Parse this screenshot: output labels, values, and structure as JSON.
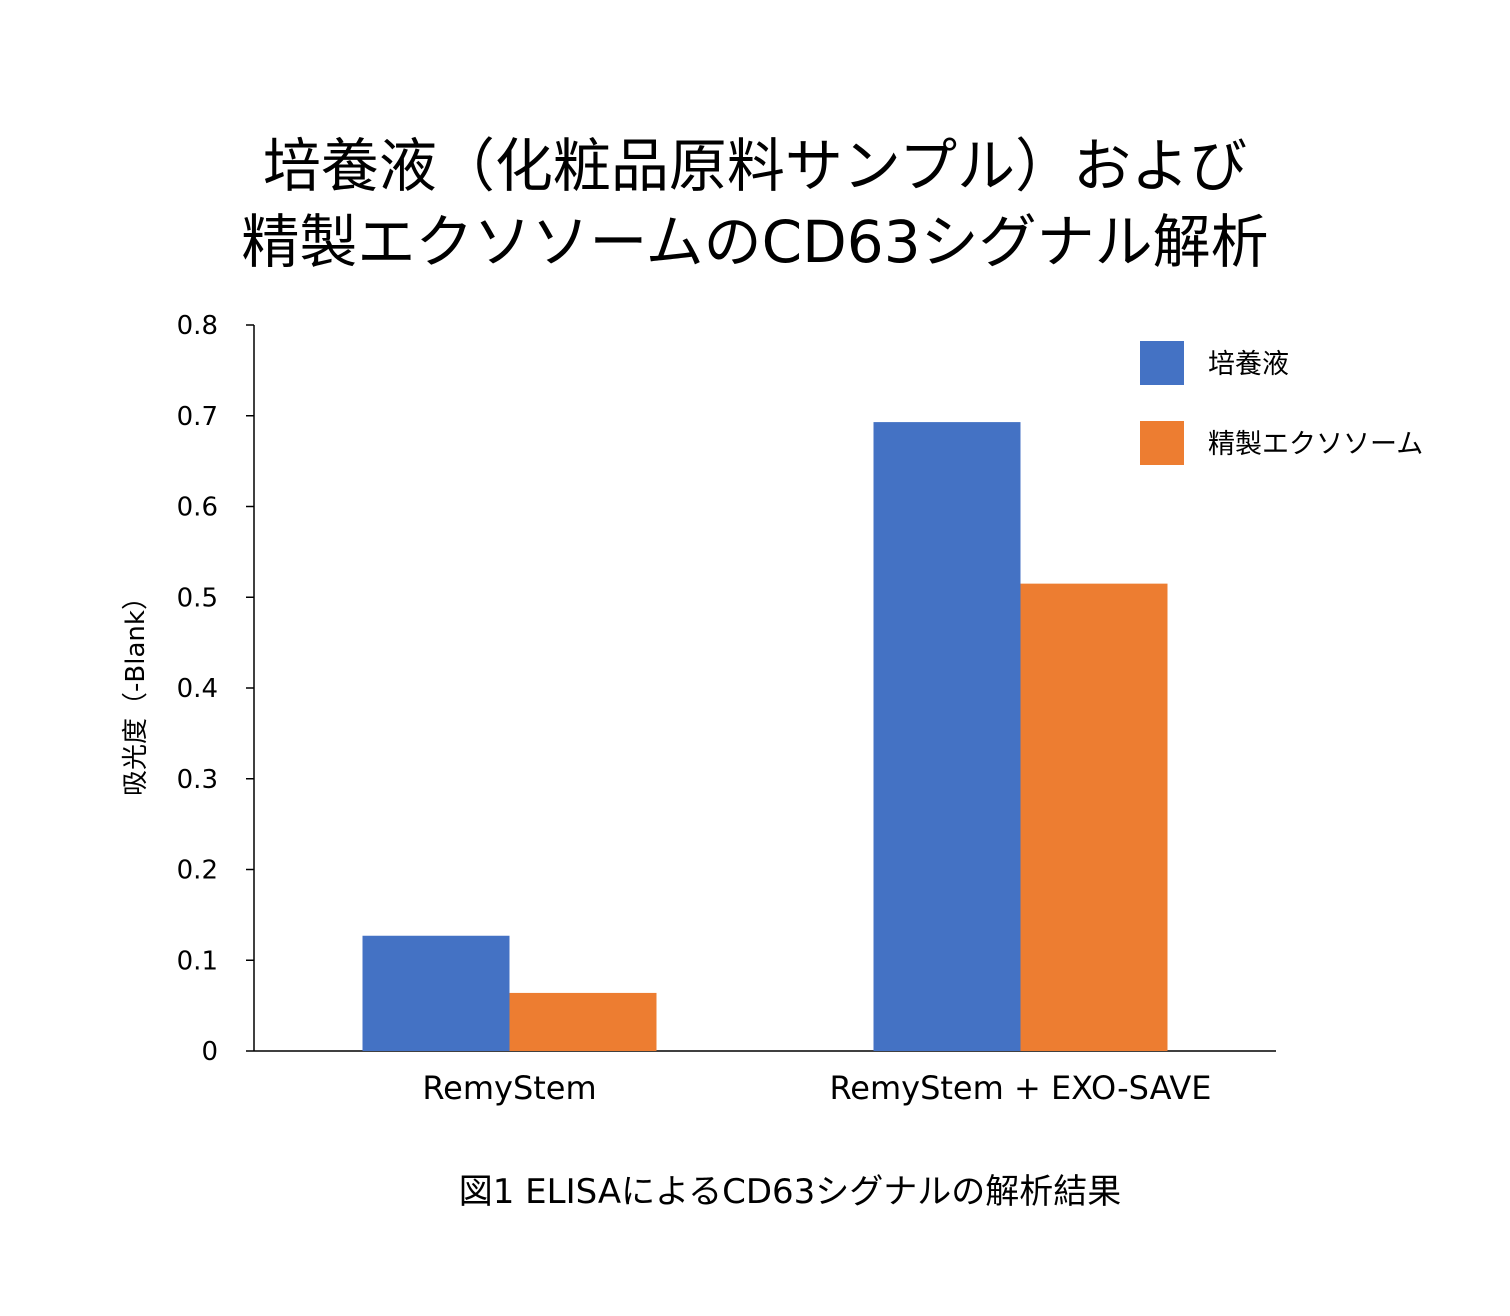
{
  "chart_data": {
    "type": "bar",
    "title_line1": "培養液（化粧品原料サンプル）および",
    "title_line2": "精製エクソソームのCD63シグナル解析",
    "xlabel": "",
    "ylabel": "吸光度（-Blank）",
    "ylim": [
      0,
      0.8
    ],
    "yticks": [
      "0",
      "0.1",
      "0.2",
      "0.3",
      "0.4",
      "0.5",
      "0.6",
      "0.7",
      "0.8"
    ],
    "categories": [
      "RemyStem",
      "RemyStem + EXO-SAVE"
    ],
    "series": [
      {
        "name": "培養液",
        "color": "#4472C4",
        "values": [
          0.127,
          0.693
        ]
      },
      {
        "name": "精製エクソソーム",
        "color": "#ED7D31",
        "values": [
          0.064,
          0.515
        ]
      }
    ],
    "legend_position": "top-right",
    "grid": false,
    "caption": "図1 ELISAによるCD63シグナルの解析結果"
  }
}
